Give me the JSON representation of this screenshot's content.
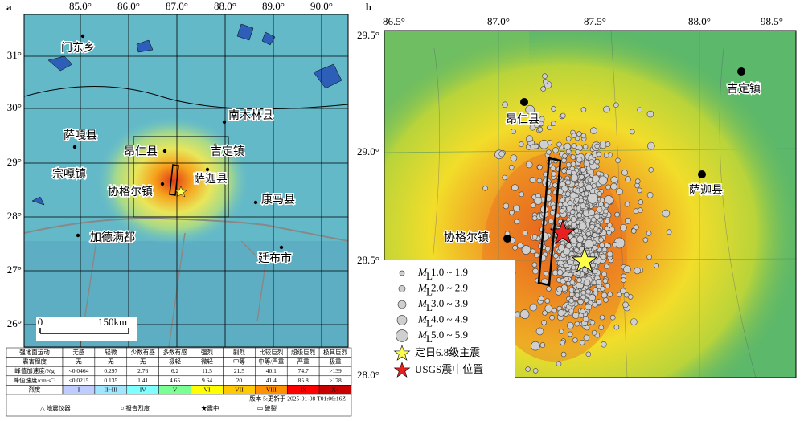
{
  "panel_a": {
    "label": "a",
    "lon_labels": [
      "85.0°",
      "86.0°",
      "87.0°",
      "88.0°",
      "89.0°",
      "90.0°"
    ],
    "lat_labels": [
      "31°",
      "30°",
      "29°",
      "28°",
      "27°",
      "26°"
    ],
    "places": [
      "门东乡",
      "萨嘎县",
      "宗嘎镇",
      "昂仁县",
      "吉定镇",
      "南木林县",
      "萨迦县",
      "协格尔镇",
      "康马县",
      "加德满都",
      "廷布市"
    ],
    "scale": [
      "0",
      "150km"
    ],
    "table": [
      [
        "强地面运动",
        "无感",
        "轻微",
        "少数有感",
        "多数有感",
        "强烈",
        "剧烈",
        "比较巨烈",
        "超级巨烈",
        "极其巨烈"
      ],
      [
        "震害程度",
        "无",
        "无",
        "无",
        "极轻",
        "微轻",
        "中等",
        "中等/严重",
        "严重",
        "极重"
      ],
      [
        "峰值加速度/%g",
        "<0.0464",
        "0.297",
        "2.76",
        "6.2",
        "11.5",
        "21.5",
        "40.1",
        "74.7",
        ">139"
      ],
      [
        "峰值速度/cm·s⁻¹",
        "<0.0215",
        "0.135",
        "1.41",
        "4.65",
        "9.64",
        "20",
        "41.4",
        "85.8",
        ">178"
      ],
      [
        "烈度",
        "I",
        "II~III",
        "IV",
        "V",
        "VI",
        "VII",
        "VIII",
        "IX",
        "X+"
      ]
    ],
    "version": "版本 5:更新于 2025-01-08 T01:06:16Z",
    "footer": [
      "△ 地震仪器",
      "○ 报告烈度",
      "★震中",
      "▭ 破裂"
    ]
  },
  "panel_b": {
    "label": "b",
    "lon_labels": [
      "86.5°",
      "87.0°",
      "87.5°",
      "88.0°",
      "98.5°"
    ],
    "lat_labels": [
      "29.5°",
      "29.0°",
      "28.5°",
      "28.0°"
    ],
    "places": [
      "昂仁县",
      "吉定镇",
      "萨迦县",
      "协格尔镇"
    ],
    "legend": [
      {
        "symbol": "M",
        "sub": "L",
        "range": "1.0 ~ 1.9"
      },
      {
        "symbol": "M",
        "sub": "L",
        "range": "2.0 ~ 2.9"
      },
      {
        "symbol": "M",
        "sub": "L",
        "range": "3.0 ~ 3.9"
      },
      {
        "symbol": "M",
        "sub": "L",
        "range": "4.0 ~ 4.9"
      },
      {
        "symbol": "M",
        "sub": "L",
        "range": "5.0 ~ 5.9"
      }
    ],
    "mainshock": "定日6.8级主震",
    "usgs": "USGS震中位置"
  }
}
